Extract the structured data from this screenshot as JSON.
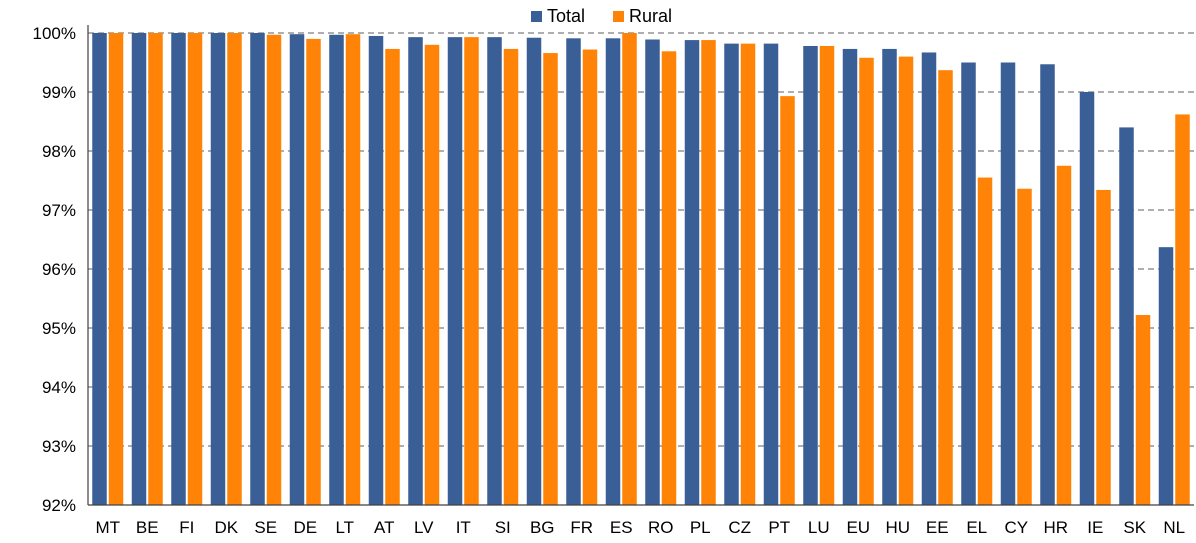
{
  "chart_data": {
    "type": "bar",
    "categories": [
      "MT",
      "BE",
      "FI",
      "DK",
      "SE",
      "DE",
      "LT",
      "AT",
      "LV",
      "IT",
      "SI",
      "BG",
      "FR",
      "ES",
      "RO",
      "PL",
      "CZ",
      "PT",
      "LU",
      "EU",
      "HU",
      "EE",
      "EL",
      "CY",
      "HR",
      "IE",
      "SK",
      "NL"
    ],
    "series": [
      {
        "name": "Total",
        "color": "#3a5f97",
        "values": [
          100,
          100,
          100,
          100,
          100,
          99.98,
          99.97,
          99.95,
          99.93,
          99.93,
          99.93,
          99.92,
          99.91,
          99.91,
          99.89,
          99.88,
          99.82,
          99.82,
          99.78,
          99.73,
          99.73,
          99.67,
          99.5,
          99.5,
          99.47,
          99.0,
          98.4,
          96.37
        ]
      },
      {
        "name": "Rural",
        "color": "#ff8306",
        "values": [
          100,
          100,
          100,
          100,
          99.97,
          99.9,
          99.98,
          99.73,
          99.8,
          99.93,
          99.73,
          99.66,
          99.72,
          100,
          99.69,
          99.88,
          99.82,
          98.93,
          99.78,
          99.58,
          99.6,
          99.37,
          97.55,
          97.36,
          97.75,
          97.34,
          95.22,
          98.62
        ]
      }
    ],
    "y_ticks": [
      "92%",
      "93%",
      "94%",
      "95%",
      "96%",
      "97%",
      "98%",
      "99%",
      "100%"
    ],
    "ylim": [
      92,
      100
    ],
    "legend_position": "top-center",
    "grid": true
  }
}
